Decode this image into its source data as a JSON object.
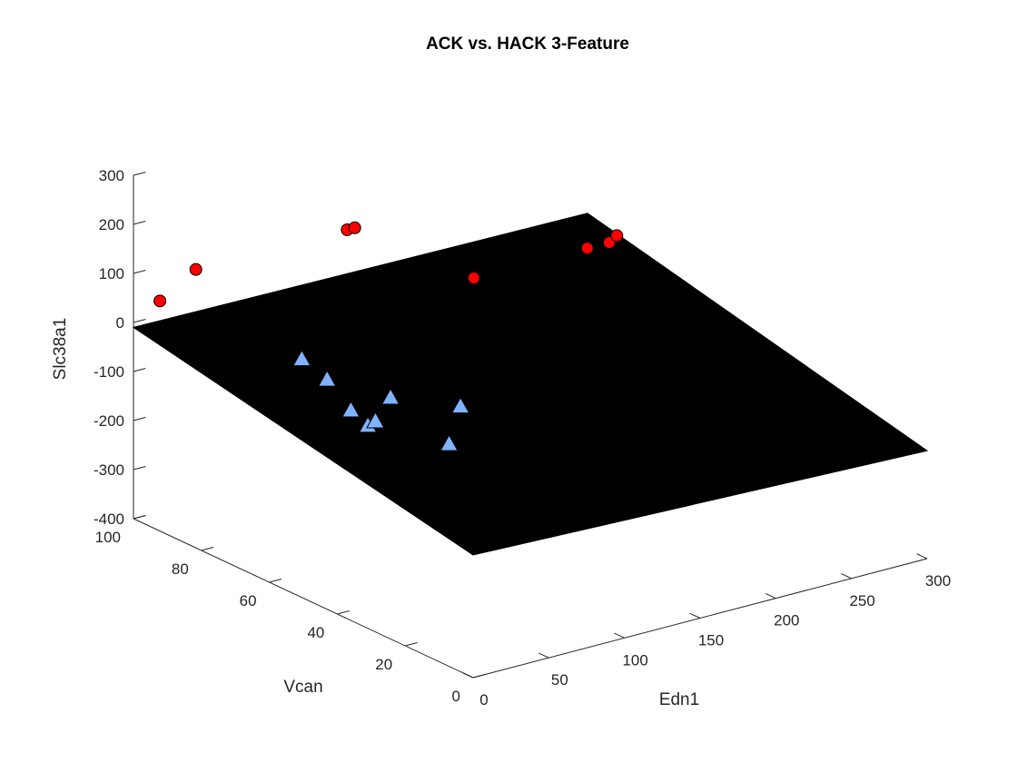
{
  "chart_data": {
    "type": "scatter3d",
    "title": "ACK vs. HACK 3-Feature",
    "xlabel": "Edn1",
    "ylabel": "Vcan",
    "zlabel": "Slc38a1",
    "xlim": [
      0,
      300
    ],
    "ylim": [
      0,
      100
    ],
    "zlim": [
      -400,
      300
    ],
    "x_ticks": [
      "0",
      "50",
      "100",
      "150",
      "200",
      "250",
      "300"
    ],
    "y_ticks": [
      "0",
      "20",
      "40",
      "60",
      "80",
      "100"
    ],
    "z_ticks": [
      "-400",
      "-300",
      "-200",
      "-100",
      "0",
      "100",
      "200",
      "300"
    ],
    "grid": false,
    "series": [
      {
        "marker": "circle",
        "color": "#ff0000",
        "points": [
          [
            4,
            94,
            60
          ],
          [
            30,
            95,
            100
          ],
          [
            130,
            95,
            100
          ],
          [
            135,
            95,
            100
          ],
          [
            180,
            80,
            10
          ],
          [
            255,
            80,
            10
          ],
          [
            265,
            78,
            20
          ],
          [
            270,
            78,
            30
          ]
        ]
      },
      {
        "marker": "triangle",
        "color": "#80b3ff",
        "points": [
          [
            100,
            95,
            -140
          ],
          [
            110,
            92,
            -180
          ],
          [
            110,
            85,
            -220
          ],
          [
            110,
            80,
            -235
          ],
          [
            115,
            80,
            -230
          ],
          [
            125,
            80,
            -190
          ],
          [
            130,
            65,
            -240
          ],
          [
            160,
            75,
            -220
          ]
        ]
      }
    ],
    "surface": {
      "color": "#000000",
      "corners": [
        [
          0,
          100,
          -10
        ],
        [
          300,
          100,
          -20
        ],
        [
          300,
          0,
          -180
        ],
        [
          0,
          0,
          -150
        ]
      ]
    }
  }
}
